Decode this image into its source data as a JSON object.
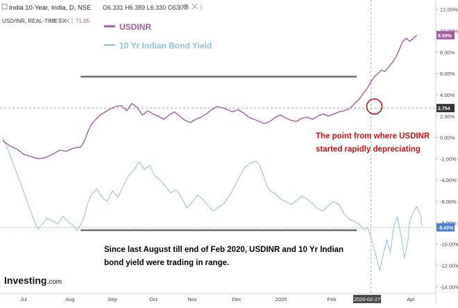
{
  "header": {
    "title": "India 10-Year, India, D, NSE",
    "ohlc": "O6.331 H6.389 L6.330 C6.378",
    "subtitle": "USD/INR, REAL-TIME FX",
    "sub_value": "71.65"
  },
  "logo": {
    "brand": "Investing",
    "suffix": ".com"
  },
  "chart_data": {
    "type": "line",
    "legend": [
      {
        "name": "USDINR",
        "color": "#a35aa8"
      },
      {
        "name": "10 Yr Indian Bond Yield",
        "color": "#8fbfe0"
      }
    ],
    "x_ticks": [
      "Jul",
      "Aug",
      "Sep",
      "Oct",
      "Nov",
      "Dec",
      "2020",
      "Feb",
      "2020-02-27",
      "Apr"
    ],
    "y_ticks": [
      "12.00%",
      "10.00%",
      "8.00%",
      "6.00%",
      "4.00%",
      "2.00%",
      "0.00%",
      "-2.00%",
      "-4.00%",
      "-6.00%",
      "-8.00%",
      "-10.00%",
      "-12.00%",
      "-14.00%"
    ],
    "ylim": [
      -14.5,
      12.5
    ],
    "x_axis": "trading days, Jul 2019 – Apr 2020",
    "series": [
      {
        "name": "USDINR",
        "color": "#a35aa8",
        "values": [
          [
            0,
            -0.3
          ],
          [
            4,
            -0.8
          ],
          [
            8,
            -1.1
          ],
          [
            12,
            -1.6
          ],
          [
            16,
            -1.8
          ],
          [
            20,
            -2.0
          ],
          [
            24,
            -1.9
          ],
          [
            28,
            -1.6
          ],
          [
            32,
            -1.2
          ],
          [
            36,
            -1.3
          ],
          [
            40,
            -1.0
          ],
          [
            44,
            -0.9
          ],
          [
            46,
            -0.4
          ],
          [
            48,
            0.5
          ],
          [
            50,
            1.2
          ],
          [
            52,
            1.6
          ],
          [
            55,
            2.1
          ],
          [
            58,
            2.4
          ],
          [
            61,
            2.7
          ],
          [
            64,
            2.9
          ],
          [
            67,
            3.0
          ],
          [
            70,
            2.5
          ],
          [
            73,
            3.2
          ],
          [
            76,
            2.8
          ],
          [
            79,
            2.1
          ],
          [
            82,
            2.5
          ],
          [
            85,
            2.2
          ],
          [
            88,
            2.0
          ],
          [
            91,
            1.7
          ],
          [
            94,
            2.1
          ],
          [
            97,
            2.4
          ],
          [
            100,
            2.0
          ],
          [
            103,
            1.6
          ],
          [
            106,
            1.4
          ],
          [
            109,
            1.7
          ],
          [
            112,
            1.9
          ],
          [
            115,
            2.2
          ],
          [
            118,
            2.6
          ],
          [
            121,
            2.9
          ],
          [
            124,
            2.8
          ],
          [
            127,
            2.6
          ],
          [
            130,
            2.4
          ],
          [
            133,
            2.6
          ],
          [
            136,
            2.3
          ],
          [
            139,
            1.9
          ],
          [
            142,
            1.7
          ],
          [
            145,
            1.5
          ],
          [
            148,
            1.3
          ],
          [
            151,
            1.5
          ],
          [
            154,
            1.9
          ],
          [
            157,
            2.1
          ],
          [
            160,
            1.8
          ],
          [
            163,
            1.6
          ],
          [
            166,
            1.5
          ],
          [
            169,
            1.8
          ],
          [
            172,
            1.9
          ],
          [
            175,
            1.7
          ],
          [
            178,
            2.0
          ],
          [
            181,
            2.2
          ],
          [
            184,
            2.0
          ],
          [
            187,
            2.2
          ],
          [
            190,
            2.4
          ],
          [
            193,
            2.5
          ],
          [
            196,
            2.7
          ],
          [
            199,
            3.2
          ],
          [
            202,
            3.7
          ],
          [
            204,
            4.2
          ],
          [
            206,
            4.6
          ],
          [
            208,
            5.2
          ],
          [
            210,
            5.7
          ],
          [
            212,
            6.0
          ],
          [
            214,
            6.3
          ],
          [
            216,
            6.2
          ],
          [
            218,
            6.6
          ],
          [
            220,
            7.0
          ],
          [
            222,
            7.5
          ],
          [
            224,
            8.2
          ],
          [
            226,
            9.0
          ],
          [
            228,
            9.3
          ],
          [
            230,
            9.0
          ],
          [
            232,
            9.3
          ],
          [
            234,
            9.6
          ]
        ]
      },
      {
        "name": "10 Yr Indian Bond Yield",
        "color": "#8fbfe0",
        "values": [
          [
            0,
            0.0
          ],
          [
            3,
            -1.2
          ],
          [
            6,
            -2.5
          ],
          [
            9,
            -3.8
          ],
          [
            12,
            -5.2
          ],
          [
            15,
            -6.6
          ],
          [
            18,
            -7.9
          ],
          [
            20,
            -8.6
          ],
          [
            22,
            -8.2
          ],
          [
            25,
            -7.6
          ],
          [
            28,
            -7.8
          ],
          [
            31,
            -8.1
          ],
          [
            34,
            -7.4
          ],
          [
            37,
            -7.9
          ],
          [
            40,
            -8.3
          ],
          [
            42,
            -8.7
          ],
          [
            44,
            -8.2
          ],
          [
            46,
            -7.4
          ],
          [
            48,
            -6.2
          ],
          [
            50,
            -5.4
          ],
          [
            53,
            -4.8
          ],
          [
            56,
            -5.6
          ],
          [
            59,
            -6.0
          ],
          [
            62,
            -5.0
          ],
          [
            65,
            -5.6
          ],
          [
            68,
            -4.6
          ],
          [
            71,
            -3.6
          ],
          [
            74,
            -3.1
          ],
          [
            77,
            -2.3
          ],
          [
            80,
            -3.0
          ],
          [
            83,
            -2.6
          ],
          [
            86,
            -3.6
          ],
          [
            89,
            -4.0
          ],
          [
            92,
            -4.6
          ],
          [
            95,
            -5.2
          ],
          [
            98,
            -4.9
          ],
          [
            101,
            -5.6
          ],
          [
            104,
            -6.6
          ],
          [
            107,
            -6.1
          ],
          [
            110,
            -5.4
          ],
          [
            113,
            -5.8
          ],
          [
            116,
            -6.4
          ],
          [
            119,
            -6.9
          ],
          [
            122,
            -6.5
          ],
          [
            125,
            -6.2
          ],
          [
            128,
            -5.5
          ],
          [
            131,
            -4.6
          ],
          [
            134,
            -3.6
          ],
          [
            137,
            -2.8
          ],
          [
            140,
            -2.4
          ],
          [
            143,
            -2.2
          ],
          [
            145,
            -2.6
          ],
          [
            147,
            -3.4
          ],
          [
            149,
            -4.4
          ],
          [
            151,
            -5.0
          ],
          [
            154,
            -5.3
          ],
          [
            157,
            -5.8
          ],
          [
            160,
            -6.0
          ],
          [
            163,
            -6.3
          ],
          [
            166,
            -5.9
          ],
          [
            169,
            -5.5
          ],
          [
            172,
            -5.8
          ],
          [
            175,
            -6.2
          ],
          [
            178,
            -6.7
          ],
          [
            181,
            -6.9
          ],
          [
            184,
            -6.4
          ],
          [
            187,
            -6.0
          ],
          [
            190,
            -6.3
          ],
          [
            193,
            -7.2
          ],
          [
            196,
            -7.7
          ],
          [
            199,
            -7.9
          ],
          [
            202,
            -8.2
          ],
          [
            204,
            -8.7
          ],
          [
            206,
            -8.4
          ],
          [
            208,
            -9.3
          ],
          [
            210,
            -10.5
          ],
          [
            212,
            -11.8
          ],
          [
            213,
            -12.5
          ],
          [
            215,
            -11.0
          ],
          [
            217,
            -9.6
          ],
          [
            219,
            -10.8
          ],
          [
            221,
            -8.4
          ],
          [
            223,
            -7.4
          ],
          [
            225,
            -9.2
          ],
          [
            227,
            -11.3
          ],
          [
            229,
            -9.6
          ],
          [
            230,
            -7.8
          ],
          [
            232,
            -7.0
          ],
          [
            234,
            -6.5
          ],
          [
            236,
            -7.2
          ],
          [
            237,
            -8.3
          ]
        ]
      }
    ],
    "reference_lines": [
      {
        "value": 2.754,
        "label": "2.754",
        "style": "dashed"
      },
      {
        "value": -8.43,
        "label": "-8.43%",
        "style": "dotted"
      }
    ],
    "price_tags": [
      {
        "label": "9.59%",
        "value": 9.59,
        "color": "#a35aa8"
      },
      {
        "label": "2.754",
        "value": 2.754,
        "color": "#333333"
      },
      {
        "label": "-8.43%",
        "value": -8.43,
        "color": "#4a7fd0"
      }
    ],
    "range_lines": [
      {
        "from_x": 44,
        "to_x": 200,
        "value": 5.7
      },
      {
        "from_x": 44,
        "to_x": 200,
        "value": -8.7
      }
    ],
    "vertical_marker_x": 208,
    "circle": {
      "x": 210,
      "value": 2.9
    },
    "annotations": [
      {
        "lines": [
          "The point from where USDINR",
          "started rapidly depreciating"
        ],
        "color": "#d01010"
      },
      {
        "lines": [
          "Since last August till end of Feb 2020, USDINR and 10 Yr Indian",
          "bond yield were trading in range."
        ],
        "color": "#000000"
      }
    ]
  }
}
